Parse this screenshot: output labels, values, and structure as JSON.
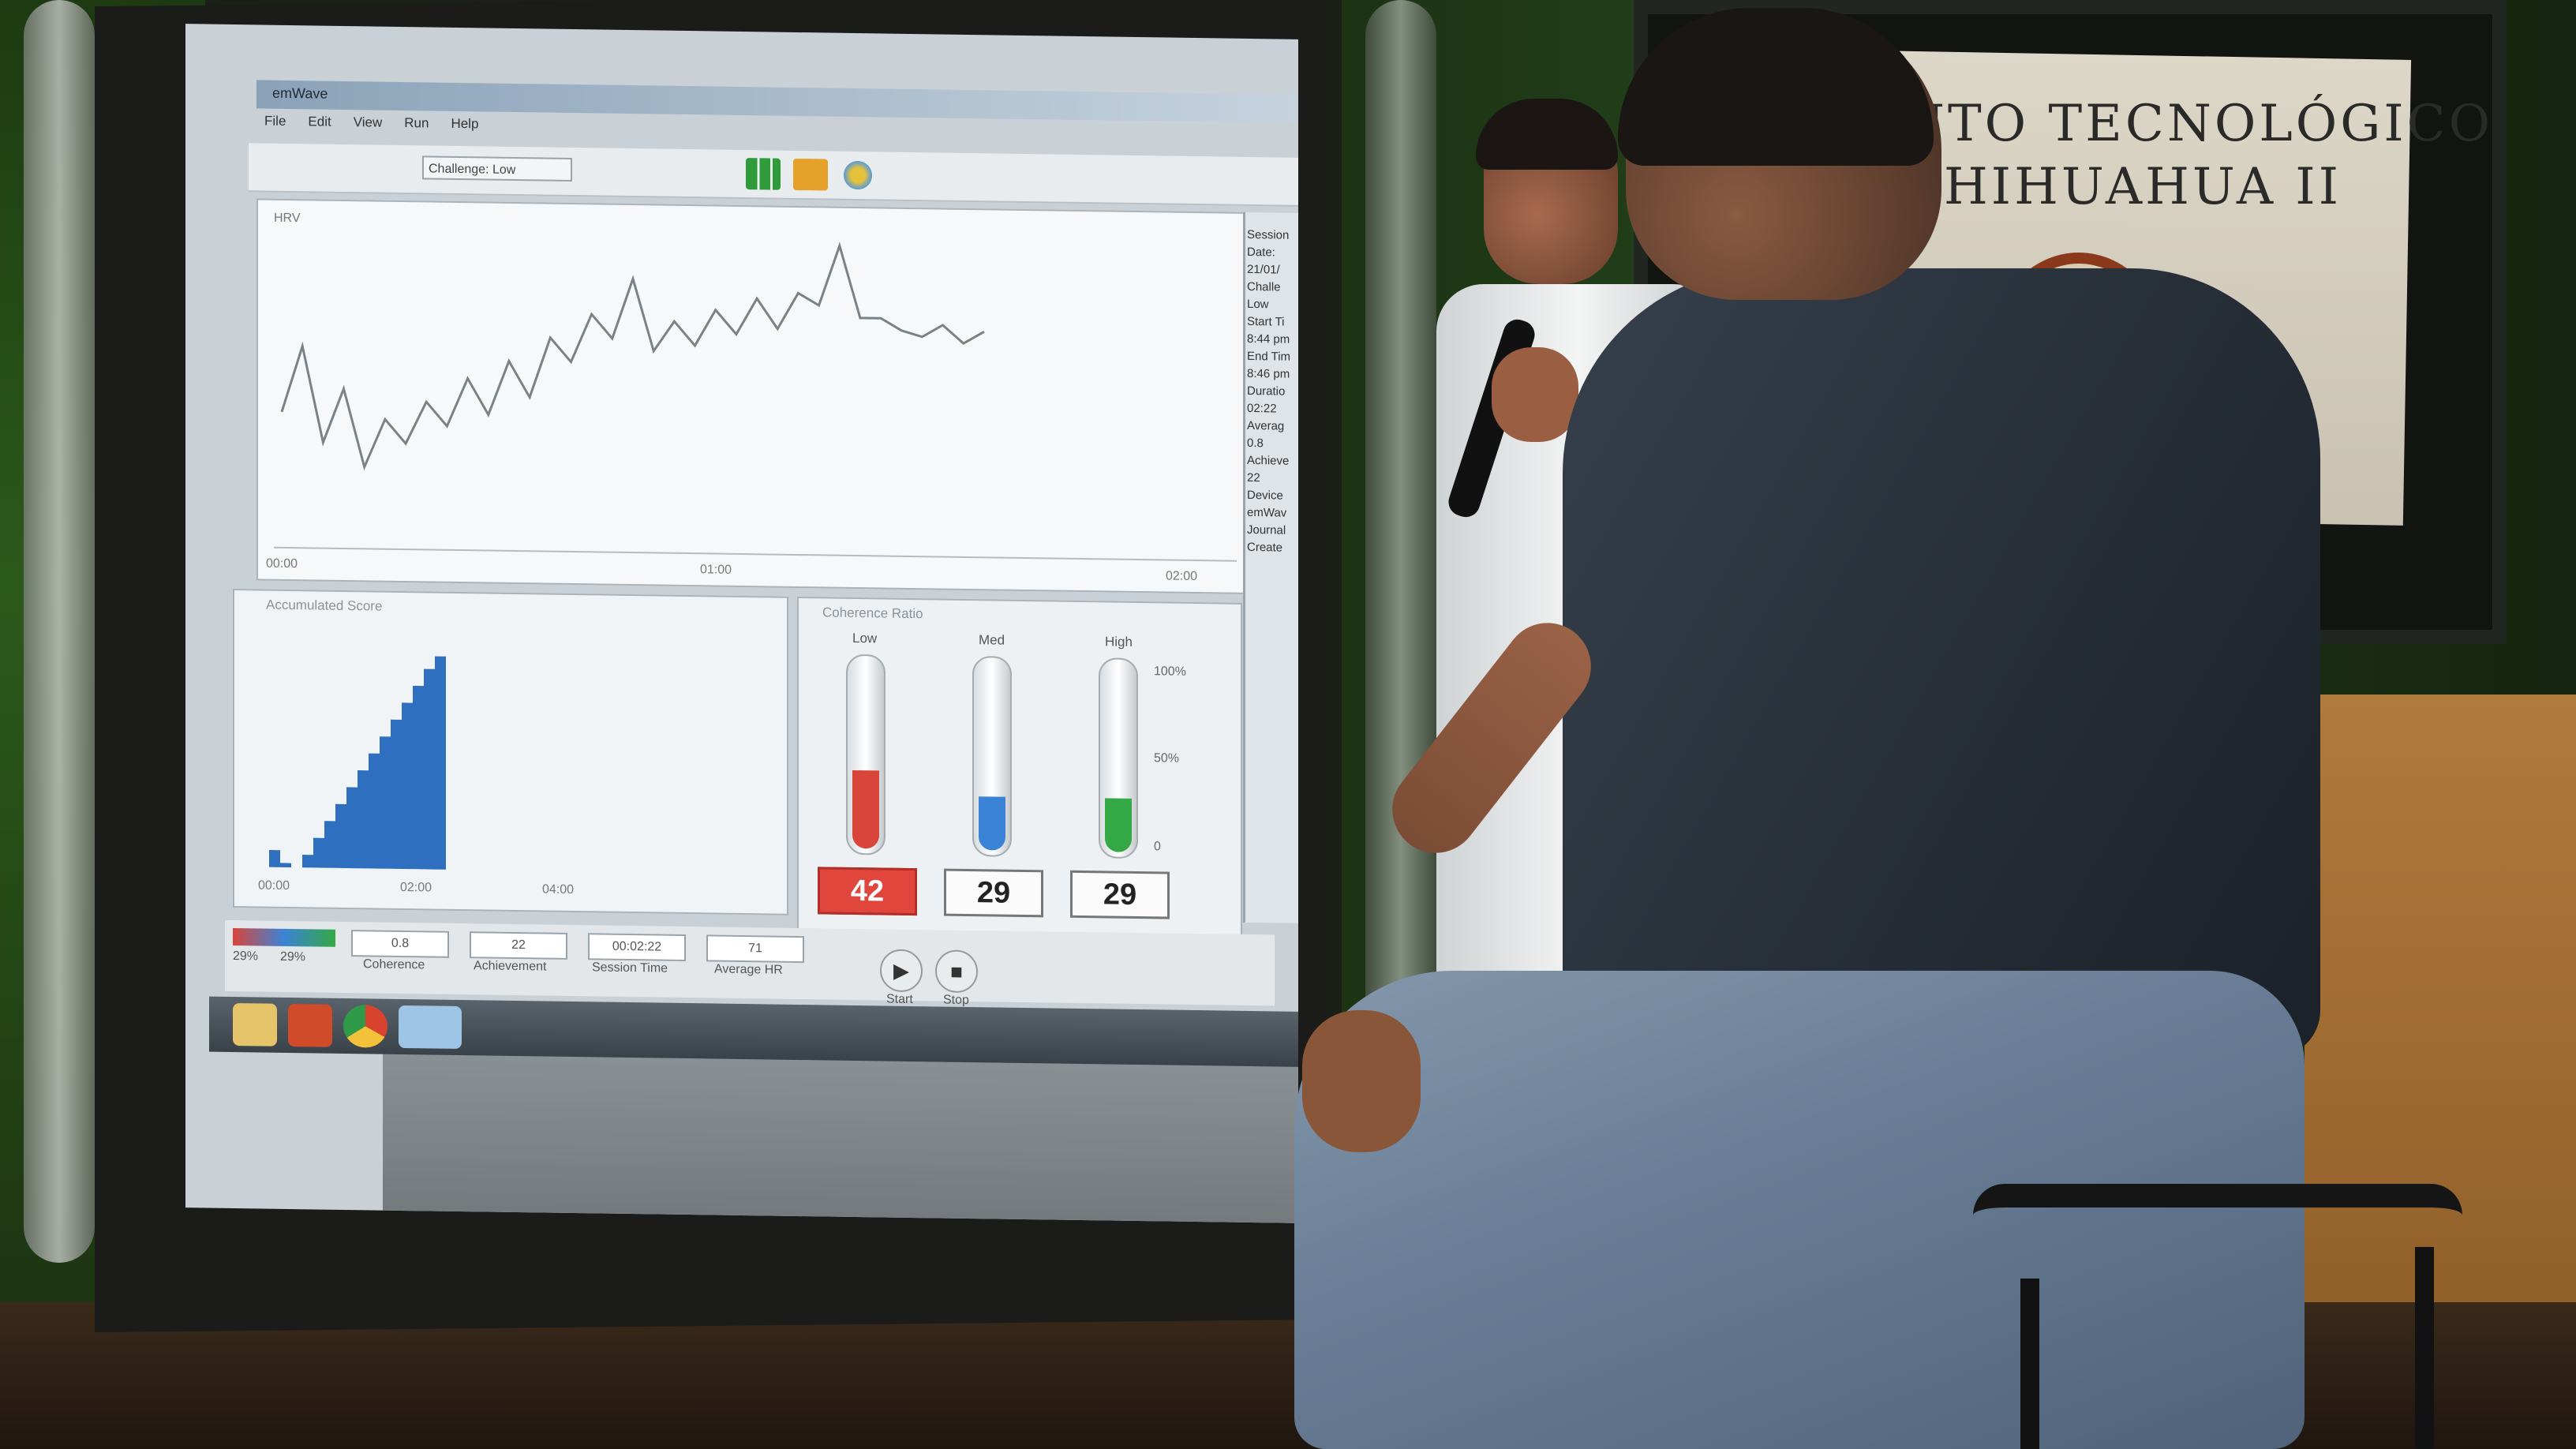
{
  "app": {
    "window_title": "emWave",
    "menu": [
      "File",
      "Edit",
      "View",
      "Run",
      "Help"
    ],
    "challenge_select": "Challenge: Low",
    "graph": {
      "ylabel": "HRV",
      "x_ticks": [
        "00:00",
        "01:00",
        "02:00"
      ]
    },
    "accumulated": {
      "title": "Accumulated Score",
      "x_ticks": [
        "00:00",
        "02:00",
        "04:00"
      ]
    },
    "coherence": {
      "title": "Coherence Ratio",
      "levels": [
        {
          "label": "Low",
          "value": "42",
          "fill_percent": 42,
          "color": "#d9453b"
        },
        {
          "label": "Med",
          "value": "29",
          "fill_percent": 29,
          "color": "#3b83d6"
        },
        {
          "label": "High",
          "value": "29",
          "fill_percent": 29,
          "color": "#34a844"
        }
      ],
      "scale": [
        "100%",
        "50%",
        "0"
      ]
    },
    "sidebar": {
      "items": [
        "Session",
        "Date:",
        "21/01/",
        "Challe",
        "Low",
        "Start Ti",
        "8:44 pm",
        "End Tim",
        "8:46 pm",
        "Duratio",
        "02:22",
        "Averag",
        "0.8",
        "Achieve",
        "22",
        "Device",
        "emWav",
        "Journal",
        "Create"
      ]
    },
    "status": {
      "legend_pcts": [
        "29%",
        "29%"
      ],
      "coherence": {
        "value": "0.8",
        "label": "Coherence"
      },
      "achievement": {
        "value": "22",
        "label": "Achievement"
      },
      "session_time": {
        "value": "00:02:22",
        "label": "Session Time"
      },
      "average_hr": {
        "value": "71",
        "label": "Average HR"
      },
      "start_label": "Start",
      "stop_label": "Stop"
    }
  },
  "banner": {
    "line1": "UTO TECNOLÓGICO",
    "line2": "CHIHUAHUA II"
  },
  "chart_data": [
    {
      "type": "line",
      "title": "",
      "ylabel": "HRV",
      "x_ticks": [
        "00:00",
        "01:00",
        "02:00"
      ],
      "y": [
        40,
        62,
        30,
        48,
        22,
        38,
        30,
        44,
        36,
        52,
        40,
        58,
        46,
        66,
        58,
        74,
        66,
        86,
        62,
        72,
        64,
        76,
        68,
        80,
        70,
        82,
        78,
        98,
        74,
        74,
        70,
        68,
        72,
        66,
        70
      ]
    },
    {
      "type": "area",
      "title": "Accumulated Score",
      "x_ticks": [
        "00:00",
        "02:00",
        "04:00"
      ],
      "y": [
        0,
        8,
        2,
        0,
        6,
        14,
        22,
        30,
        38,
        46,
        54,
        62,
        70,
        78,
        86,
        94,
        100
      ]
    }
  ]
}
